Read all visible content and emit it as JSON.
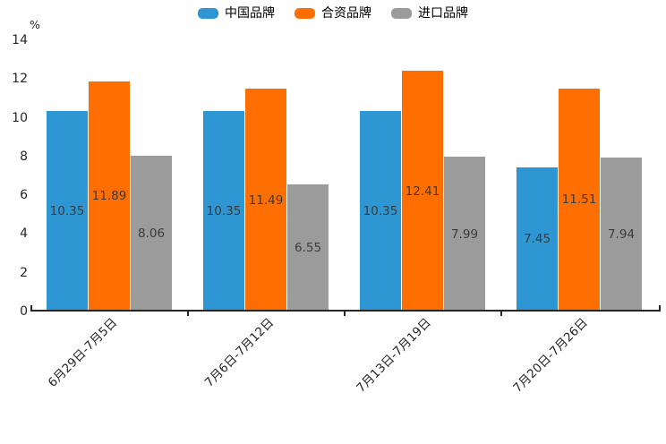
{
  "chart_data": {
    "type": "bar",
    "title": "",
    "unit_label": "%",
    "categories": [
      "6月29日-7月5日",
      "7月6日-7月12日",
      "7月13日-7月19日",
      "7月20日-7月26日"
    ],
    "series": [
      {
        "name": "中国品牌",
        "color": "#2E96D3",
        "values": [
          10.35,
          10.35,
          10.35,
          7.45
        ]
      },
      {
        "name": "合资品牌",
        "color": "#FF6E00",
        "values": [
          11.89,
          11.49,
          12.41,
          11.51
        ]
      },
      {
        "name": "进口品牌",
        "color": "#9B9B9B",
        "values": [
          8.06,
          6.55,
          7.99,
          7.94
        ]
      }
    ],
    "yticks": [
      0,
      2,
      4,
      6,
      8,
      10,
      12,
      14
    ],
    "ylim": [
      0,
      14
    ],
    "xlabel": "",
    "ylabel": "%",
    "grid": false,
    "legend_position": "top-center",
    "value_labels": true,
    "axis_color": "#262626",
    "value_label_color": "#3b3b3b"
  }
}
